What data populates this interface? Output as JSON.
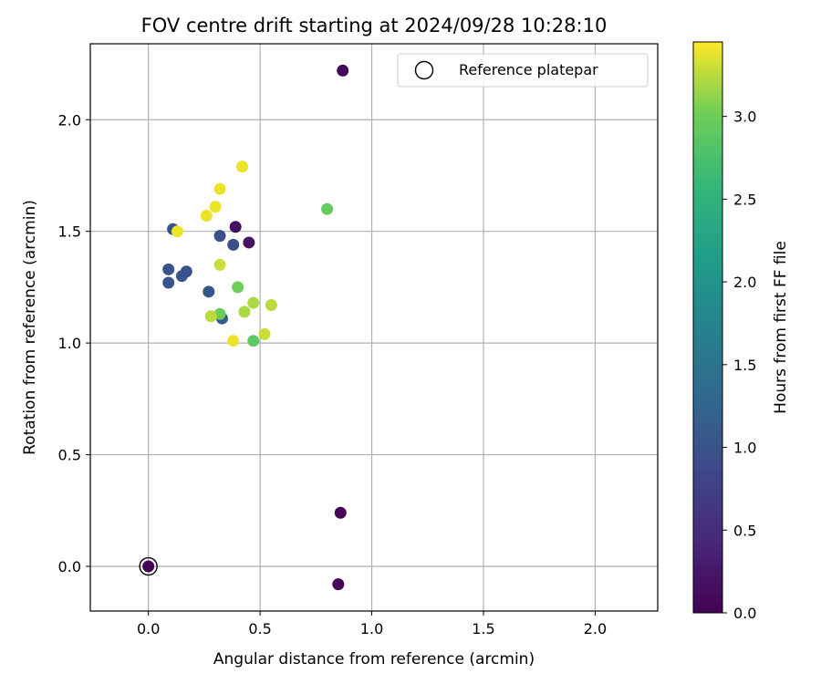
{
  "chart_data": {
    "type": "scatter",
    "title": "FOV centre drift starting at 2024/09/28 10:28:10",
    "xlabel": "Angular distance from reference (arcmin)",
    "ylabel": "Rotation from reference (arcmin)",
    "xlim": [
      -0.26,
      2.28
    ],
    "ylim": [
      -0.2,
      2.34
    ],
    "xticks": [
      0.0,
      0.5,
      1.0,
      1.5,
      2.0
    ],
    "yticks": [
      0.0,
      0.5,
      1.0,
      1.5,
      2.0
    ],
    "xtick_labels": [
      "0.0",
      "0.5",
      "1.0",
      "1.5",
      "2.0"
    ],
    "ytick_labels": [
      "0.0",
      "0.5",
      "1.0",
      "1.5",
      "2.0"
    ],
    "grid": true,
    "colormap": "viridis",
    "legend": {
      "label": "Reference platepar",
      "placement": "top-right"
    },
    "reference_point": {
      "x": 0.0,
      "y": 0.0
    },
    "colorbar": {
      "label": "Hours from first FF file",
      "range": [
        0.0,
        3.45
      ],
      "ticks": [
        0.0,
        0.5,
        1.0,
        1.5,
        2.0,
        2.5,
        3.0
      ],
      "tick_labels": [
        "0.0",
        "0.5",
        "1.0",
        "1.5",
        "2.0",
        "2.5",
        "3.0"
      ]
    },
    "points": [
      {
        "x": 0.0,
        "y": 0.0,
        "hours": 0.0
      },
      {
        "x": 0.87,
        "y": 2.22,
        "hours": 0.05
      },
      {
        "x": 0.86,
        "y": 0.24,
        "hours": 0.03
      },
      {
        "x": 0.85,
        "y": -0.08,
        "hours": 0.02
      },
      {
        "x": 0.39,
        "y": 1.52,
        "hours": 0.15
      },
      {
        "x": 0.45,
        "y": 1.45,
        "hours": 0.2
      },
      {
        "x": 0.11,
        "y": 1.51,
        "hours": 0.95
      },
      {
        "x": 0.32,
        "y": 1.48,
        "hours": 0.95
      },
      {
        "x": 0.38,
        "y": 1.44,
        "hours": 0.95
      },
      {
        "x": 0.09,
        "y": 1.33,
        "hours": 1.0
      },
      {
        "x": 0.17,
        "y": 1.32,
        "hours": 1.0
      },
      {
        "x": 0.15,
        "y": 1.3,
        "hours": 1.0
      },
      {
        "x": 0.09,
        "y": 1.27,
        "hours": 1.0
      },
      {
        "x": 0.27,
        "y": 1.23,
        "hours": 1.05
      },
      {
        "x": 0.33,
        "y": 1.11,
        "hours": 1.1
      },
      {
        "x": 0.42,
        "y": 1.79,
        "hours": 3.4
      },
      {
        "x": 0.32,
        "y": 1.69,
        "hours": 3.4
      },
      {
        "x": 0.3,
        "y": 1.61,
        "hours": 3.4
      },
      {
        "x": 0.26,
        "y": 1.57,
        "hours": 3.4
      },
      {
        "x": 0.13,
        "y": 1.5,
        "hours": 3.4
      },
      {
        "x": 0.8,
        "y": 1.6,
        "hours": 2.95
      },
      {
        "x": 0.32,
        "y": 1.35,
        "hours": 3.3
      },
      {
        "x": 0.4,
        "y": 1.25,
        "hours": 3.0
      },
      {
        "x": 0.47,
        "y": 1.18,
        "hours": 3.2
      },
      {
        "x": 0.55,
        "y": 1.17,
        "hours": 3.25
      },
      {
        "x": 0.43,
        "y": 1.14,
        "hours": 3.2
      },
      {
        "x": 0.32,
        "y": 1.13,
        "hours": 3.0
      },
      {
        "x": 0.28,
        "y": 1.12,
        "hours": 3.25
      },
      {
        "x": 0.52,
        "y": 1.04,
        "hours": 3.3
      },
      {
        "x": 0.38,
        "y": 1.01,
        "hours": 3.4
      },
      {
        "x": 0.47,
        "y": 1.01,
        "hours": 2.9
      }
    ]
  }
}
